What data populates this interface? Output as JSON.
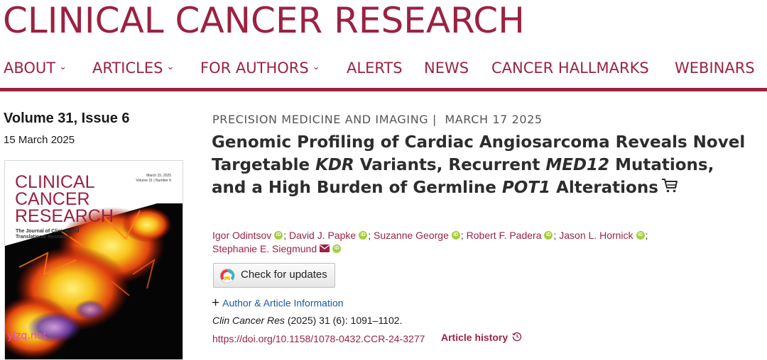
{
  "site": {
    "logo": "CLINICAL CANCER RESEARCH",
    "brand_color": "#9b2242"
  },
  "nav": {
    "items": [
      {
        "label": "ABOUT",
        "dropdown": true
      },
      {
        "label": "ARTICLES",
        "dropdown": true
      },
      {
        "label": "FOR AUTHORS",
        "dropdown": true
      },
      {
        "label": "ALERTS",
        "dropdown": false
      },
      {
        "label": "NEWS",
        "dropdown": false
      },
      {
        "label": "CANCER HALLMARKS",
        "dropdown": false
      },
      {
        "label": "WEBINARS",
        "dropdown": false
      }
    ],
    "chevron_icon": "chevron-down-icon"
  },
  "issue": {
    "volume": "Volume 31, Issue 6",
    "date": "15 March 2025",
    "cover": {
      "title_lines": [
        "CLINICAL",
        "CANCER",
        "RESEARCH"
      ],
      "subtitle_lines": [
        "The Journal of Clinical and",
        "Translational Research"
      ],
      "meta_lines": [
        "March 15, 2025",
        "Volume 31 | Number 6"
      ]
    }
  },
  "article": {
    "section": "PRECISION MEDICINE AND IMAGING",
    "section_sep": "|",
    "date": "MARCH 17 2025",
    "title_parts": [
      {
        "text": "Genomic Profiling of Cardiac Angiosarcoma Reveals Novel Targetable ",
        "italic": false
      },
      {
        "text": "KDR",
        "italic": true
      },
      {
        "text": " Variants, Recurrent ",
        "italic": false
      },
      {
        "text": "MED12",
        "italic": true
      },
      {
        "text": " Mutations, and a High Burden of Germline ",
        "italic": false
      },
      {
        "text": "POT1",
        "italic": true
      },
      {
        "text": " Alterations",
        "italic": false
      }
    ],
    "cart_icon": "shopping-cart-icon",
    "authors": [
      {
        "name": "Igor Odintsov",
        "orcid": true,
        "email": false
      },
      {
        "name": "David J. Papke",
        "orcid": true,
        "email": false
      },
      {
        "name": "Suzanne George",
        "orcid": true,
        "email": false
      },
      {
        "name": "Robert F. Padera",
        "orcid": true,
        "email": false
      },
      {
        "name": "Jason L. Hornick",
        "orcid": true,
        "email": false
      },
      {
        "name": "Stephanie E. Siegmund",
        "orcid": true,
        "email": true
      }
    ],
    "orcid_label": "iD",
    "author_separator": ";",
    "check_updates_label": "Check for updates",
    "author_info_label": "Author & Article Information",
    "citation": {
      "journal": "Clin Cancer Res",
      "rest": " (2025) 31 (6): 1091–1102."
    },
    "doi": "https://doi.org/10.1158/1078-0432.CCR-24-3277",
    "history_label": "Article history"
  },
  "watermark": "ylzq.net"
}
